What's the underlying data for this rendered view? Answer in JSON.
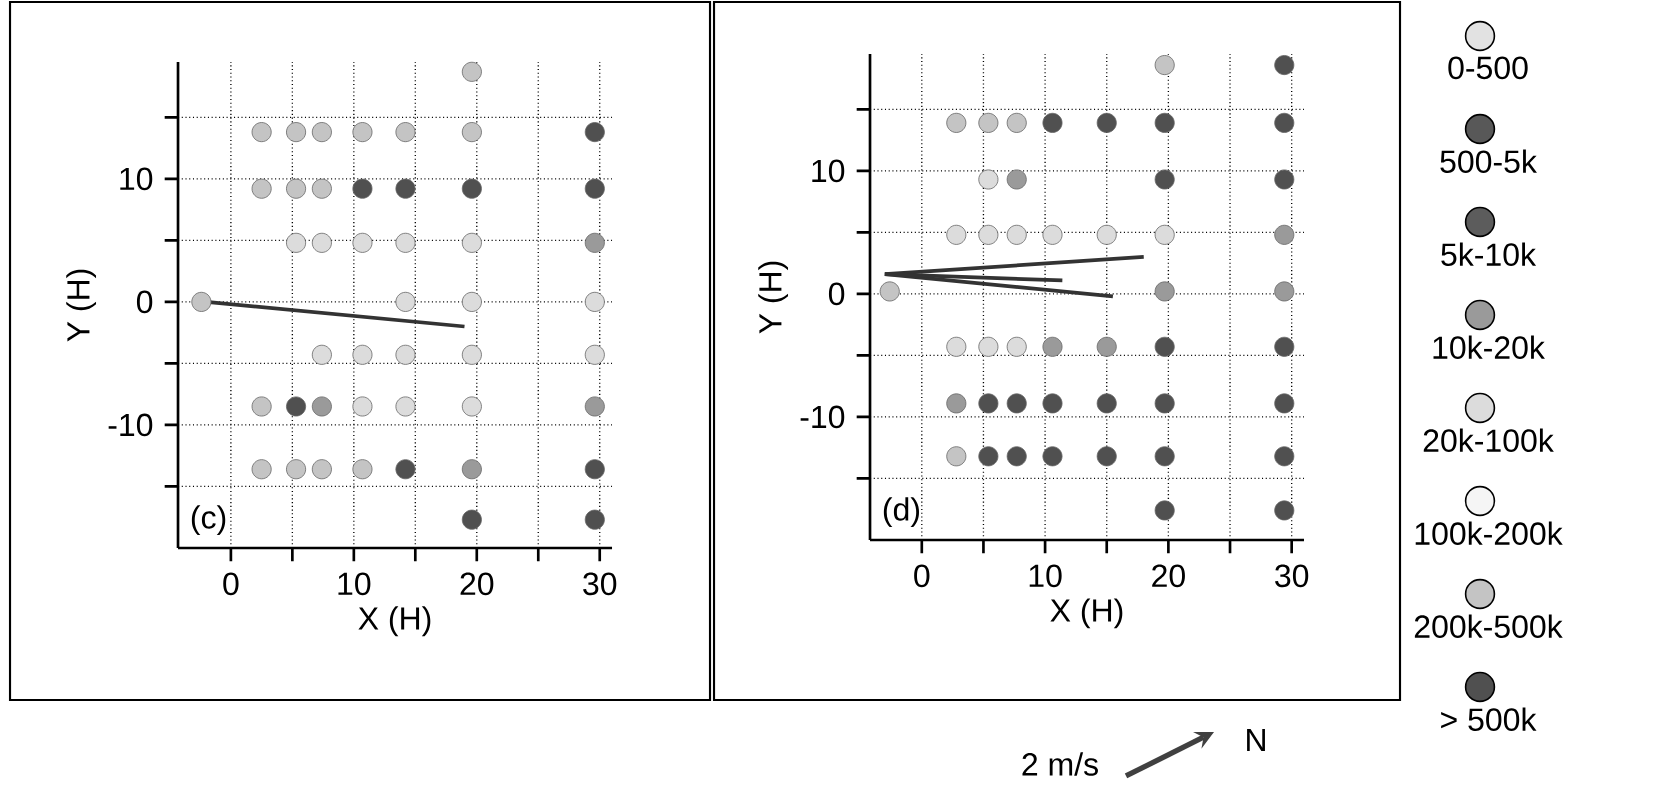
{
  "chart_data": [
    {
      "type": "scatter",
      "xlabel": "X (H)",
      "ylabel": "Y (H)",
      "annotations": [
        "(c)"
      ],
      "grid": true,
      "xlim": [
        -4.3,
        31
      ],
      "ylim": [
        -20,
        19.5
      ],
      "xticks": [
        0,
        {
          "value": 5,
          "label": null
        },
        10,
        {
          "value": 15,
          "label": null
        },
        20,
        {
          "value": 25,
          "label": null
        },
        30
      ],
      "yticks": [
        {
          "value": -15,
          "label": null
        },
        -10,
        {
          "value": -5,
          "label": null
        },
        0,
        {
          "value": 5,
          "label": null
        },
        10,
        {
          "value": 15,
          "label": null
        }
      ],
      "series": [
        {
          "marker": "circle",
          "color": "#505050",
          "x": [
            29.6,
            10.7,
            14.2,
            19.6,
            29.6,
            5.3,
            14.2,
            29.6,
            19.6,
            29.6
          ],
          "values": [
            13.8,
            9.2,
            9.2,
            9.2,
            9.2,
            -8.5,
            -13.6,
            -13.6,
            -17.7,
            -17.7
          ]
        },
        {
          "marker": "circle",
          "color": "#9a9a9a",
          "x": [
            29.6,
            7.4,
            29.6,
            19.6
          ],
          "values": [
            4.8,
            -8.5,
            -8.5,
            -13.6
          ]
        },
        {
          "marker": "circle",
          "color": "#c4c4c4",
          "x": [
            19.6,
            2.5,
            5.3,
            7.4,
            10.7,
            14.2,
            19.6,
            2.5,
            5.3,
            7.4,
            -2.4,
            2.5,
            2.5,
            5.3,
            7.4,
            10.7
          ],
          "values": [
            18.7,
            13.8,
            13.8,
            13.8,
            13.8,
            13.8,
            13.8,
            9.2,
            9.2,
            9.2,
            0,
            -8.5,
            -13.6,
            -13.6,
            -13.6,
            -13.6
          ]
        },
        {
          "marker": "circle",
          "color": "#dcdcdc",
          "x": [
            5.3,
            7.4,
            10.7,
            14.2,
            19.6,
            14.2,
            19.6,
            29.6,
            7.4,
            10.7,
            14.2,
            19.6,
            29.6,
            10.7,
            14.2,
            19.6
          ],
          "values": [
            4.8,
            4.8,
            4.8,
            4.8,
            4.8,
            0,
            0,
            0,
            -4.3,
            -4.3,
            -4.3,
            -4.3,
            -4.3,
            -8.5,
            -8.5,
            -8.5
          ]
        },
        {
          "type": "line",
          "color": "#333333",
          "x": [
            -2,
            19
          ],
          "values": [
            0,
            -2
          ]
        }
      ]
    },
    {
      "type": "scatter",
      "xlabel": "X (H)",
      "ylabel": "Y (H)",
      "annotations": [
        "(d)",
        "2 m/s",
        "N"
      ],
      "grid": true,
      "legend": "right",
      "xlim": [
        -4.2,
        31
      ],
      "ylim": [
        -20,
        19.5
      ],
      "xticks": [
        0,
        {
          "value": 5,
          "label": null
        },
        10,
        {
          "value": 15,
          "label": null
        },
        20,
        {
          "value": 25,
          "label": null
        },
        30
      ],
      "yticks": [
        {
          "value": -15,
          "label": null
        },
        -10,
        {
          "value": -5,
          "label": null
        },
        0,
        {
          "value": 5,
          "label": null
        },
        10,
        {
          "value": 15,
          "label": null
        }
      ],
      "series": [
        {
          "name": "0-500",
          "marker": "circle",
          "color": "#e2e2e2"
        },
        {
          "name": "500-5k",
          "marker": "circle",
          "color": "#585858"
        },
        {
          "name": "5k-10k",
          "marker": "circle",
          "color": "#5c5c5c"
        },
        {
          "name": "10k-20k",
          "marker": "circle",
          "color": "#9a9a9a",
          "x": [
            7.7,
            29.4,
            19.7,
            29.4,
            10.6,
            15.0,
            2.8
          ],
          "values": [
            9.3,
            4.8,
            0.2,
            0.2,
            -4.3,
            -4.3,
            -8.9
          ]
        },
        {
          "name": "20k-100k",
          "marker": "circle",
          "color": "#dcdcdc",
          "x": [
            5.4,
            2.8,
            5.4,
            7.7,
            10.6,
            15.0,
            19.7,
            2.8,
            5.4,
            7.7
          ],
          "values": [
            9.3,
            4.8,
            4.8,
            4.8,
            4.8,
            4.8,
            4.8,
            -4.3,
            -4.3,
            -4.3
          ]
        },
        {
          "name": "100k-200k",
          "marker": "circle",
          "color": "#f5f5f5"
        },
        {
          "name": "200k-500k",
          "marker": "circle",
          "color": "#c4c4c4",
          "x": [
            19.7,
            2.8,
            5.4,
            7.7,
            -2.6,
            2.8
          ],
          "values": [
            18.6,
            13.9,
            13.9,
            13.9,
            0.2,
            -13.2
          ]
        },
        {
          "name": "> 500k",
          "marker": "circle",
          "color": "#505050",
          "x": [
            29.4,
            10.6,
            15.0,
            19.7,
            29.4,
            19.7,
            29.4,
            19.7,
            29.4,
            5.4,
            7.7,
            10.6,
            15.0,
            19.7,
            29.4,
            5.4,
            7.7,
            10.6,
            15.0,
            19.7,
            29.4,
            19.7,
            29.4
          ],
          "values": [
            18.6,
            13.9,
            13.9,
            13.9,
            13.9,
            9.3,
            9.3,
            -4.3,
            -4.3,
            -8.9,
            -8.9,
            -8.9,
            -8.9,
            -8.9,
            -8.9,
            -13.2,
            -13.2,
            -13.2,
            -13.2,
            -13.2,
            -13.2,
            -17.6,
            -17.6
          ]
        },
        {
          "type": "line",
          "color": "#333333",
          "x": [
            -3,
            18
          ],
          "values": [
            1.6,
            3
          ]
        },
        {
          "type": "line",
          "color": "#333333",
          "x": [
            -3,
            15.5
          ],
          "values": [
            1.6,
            -0.2
          ]
        },
        {
          "type": "line",
          "color": "#333333",
          "x": [
            -3,
            11.4
          ],
          "values": [
            1.6,
            1.1
          ]
        }
      ]
    }
  ]
}
